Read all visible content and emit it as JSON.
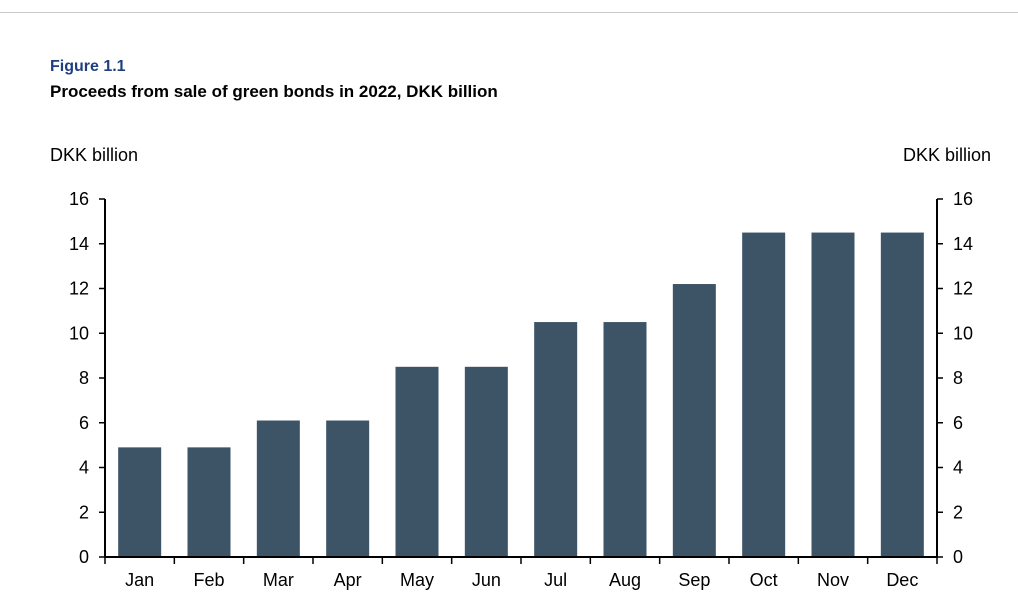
{
  "figure_label": "Figure 1.1",
  "title": "Proceeds from sale of green bonds in 2022, DKK billion",
  "colors": {
    "bar": "#3d5466",
    "axis": "#000000",
    "rule": "#c8c8c8",
    "label": "#1f3f7f"
  },
  "chart_data": {
    "type": "bar",
    "title": "Proceeds from sale of green bonds in 2022, DKK billion",
    "ylabel_left": "DKK billion",
    "ylabel_right": "DKK billion",
    "categories": [
      "Jan",
      "Feb",
      "Mar",
      "Apr",
      "May",
      "Jun",
      "Jul",
      "Aug",
      "Sep",
      "Oct",
      "Nov",
      "Dec"
    ],
    "values": [
      4.9,
      4.9,
      6.1,
      6.1,
      8.5,
      8.5,
      10.5,
      10.5,
      12.2,
      14.5,
      14.5,
      14.5
    ],
    "ylim": [
      0,
      16
    ],
    "yticks": [
      0,
      2,
      4,
      6,
      8,
      10,
      12,
      14,
      16
    ],
    "grid": false,
    "legend": "none"
  }
}
